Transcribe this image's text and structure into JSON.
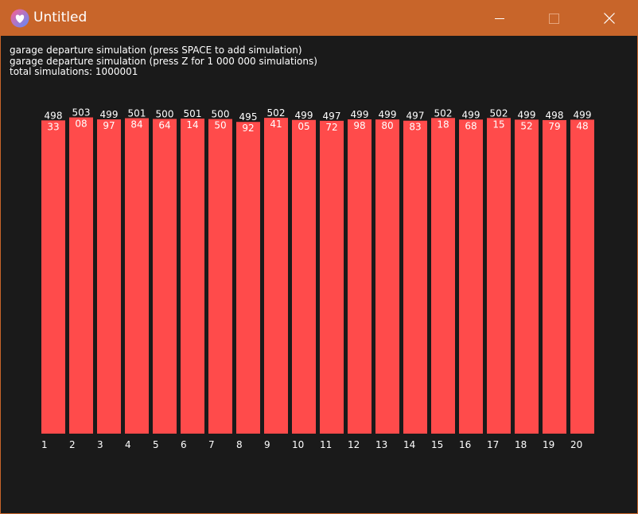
{
  "window": {
    "title": "Untitled",
    "title_bar_color": "#c8652a",
    "background_color": "#1a1a1a",
    "app_icon": "heart-app-icon",
    "controls": [
      "minimize-icon",
      "maximize-icon",
      "close-icon"
    ]
  },
  "info": {
    "line1": "garage departure simulation (press SPACE to add simulation)",
    "line2": "garage departure simulation (press Z for 1 000 000 simulations)",
    "line3": "total simulations: 1000001"
  },
  "chart_data": {
    "type": "bar",
    "categories": [
      "1",
      "2",
      "3",
      "4",
      "5",
      "6",
      "7",
      "8",
      "9",
      "10",
      "11",
      "12",
      "13",
      "14",
      "15",
      "16",
      "17",
      "18",
      "19",
      "20"
    ],
    "values": [
      49833,
      50308,
      49997,
      50184,
      50064,
      50114,
      50050,
      49592,
      50241,
      49905,
      49772,
      49998,
      49980,
      49783,
      50218,
      49968,
      50215,
      49952,
      49879,
      49948
    ],
    "label_top": [
      "498",
      "503",
      "499",
      "501",
      "500",
      "501",
      "500",
      "495",
      "502",
      "499",
      "497",
      "499",
      "499",
      "497",
      "502",
      "499",
      "502",
      "499",
      "498",
      "499"
    ],
    "label_inner": [
      "33",
      "08",
      "97",
      "84",
      "64",
      "14",
      "50",
      "92",
      "41",
      "05",
      "72",
      "98",
      "80",
      "83",
      "18",
      "68",
      "15",
      "52",
      "79",
      "48"
    ],
    "bar_color": "#ff4b4b",
    "label_color": "#ffffff",
    "title": "",
    "xlabel": "",
    "ylabel": ""
  }
}
